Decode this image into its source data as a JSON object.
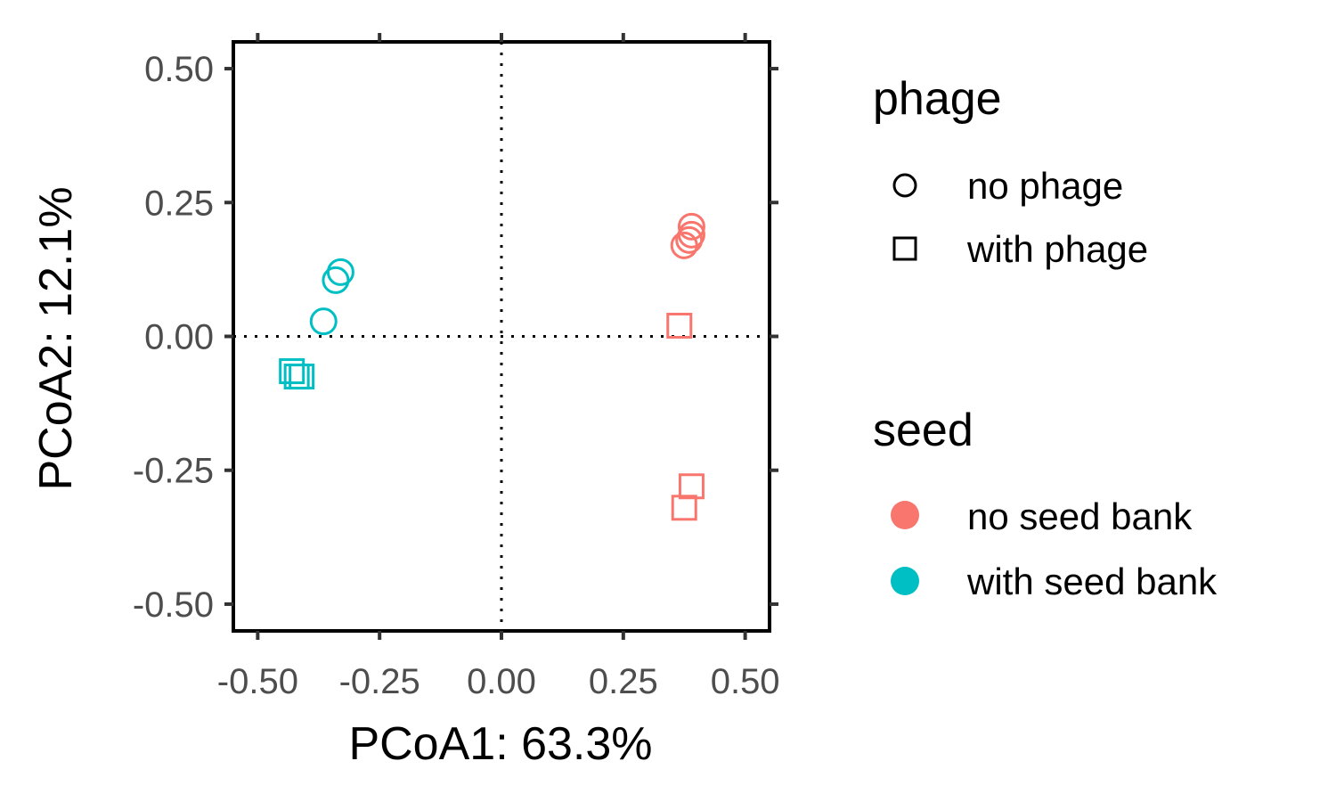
{
  "chart_data": {
    "type": "scatter",
    "xlabel": "PCoA1: 63.3%",
    "ylabel": "PCoA2: 12.1%",
    "xlim": [
      -0.55,
      0.55
    ],
    "ylim": [
      -0.55,
      0.55
    ],
    "x_ticks": [
      -0.5,
      -0.25,
      0,
      0.25,
      0.5
    ],
    "y_ticks": [
      -0.5,
      -0.25,
      0,
      0.25,
      0.5
    ],
    "x_tick_labels": [
      "-0.50",
      "-0.25",
      "0.00",
      "0.25",
      "0.50"
    ],
    "y_tick_labels": [
      "-0.50",
      "-0.25",
      "0.00",
      "0.25",
      "0.50"
    ],
    "reference_lines": {
      "x": 0,
      "y": 0,
      "style": "dotted"
    },
    "grid": false,
    "legend_position": "right",
    "colors": {
      "no seed bank": "#F8766D",
      "with seed bank": "#00BFC4"
    },
    "legends": [
      {
        "title": "phage",
        "items": [
          {
            "label": "no phage",
            "shape": "circle"
          },
          {
            "label": "with phage",
            "shape": "square"
          }
        ]
      },
      {
        "title": "seed",
        "items": [
          {
            "label": "no seed bank",
            "color": "#F8766D"
          },
          {
            "label": "with seed bank",
            "color": "#00BFC4"
          }
        ]
      }
    ],
    "series": [
      {
        "phage": "no phage",
        "seed": "no seed bank",
        "shape": "circle",
        "color": "#F8766D",
        "points": [
          [
            0.39,
            0.205
          ],
          [
            0.39,
            0.19
          ],
          [
            0.385,
            0.18
          ],
          [
            0.375,
            0.17
          ]
        ]
      },
      {
        "phage": "with phage",
        "seed": "no seed bank",
        "shape": "square",
        "color": "#F8766D",
        "points": [
          [
            0.365,
            0.02
          ],
          [
            0.39,
            -0.28
          ],
          [
            0.375,
            -0.32
          ]
        ]
      },
      {
        "phage": "no phage",
        "seed": "with seed bank",
        "shape": "circle",
        "color": "#00BFC4",
        "points": [
          [
            -0.33,
            0.12
          ],
          [
            -0.34,
            0.105
          ],
          [
            -0.365,
            0.028
          ]
        ]
      },
      {
        "phage": "with phage",
        "seed": "with seed bank",
        "shape": "square",
        "color": "#00BFC4",
        "points": [
          [
            -0.43,
            -0.065
          ],
          [
            -0.42,
            -0.075
          ],
          [
            -0.41,
            -0.075
          ]
        ]
      }
    ]
  }
}
